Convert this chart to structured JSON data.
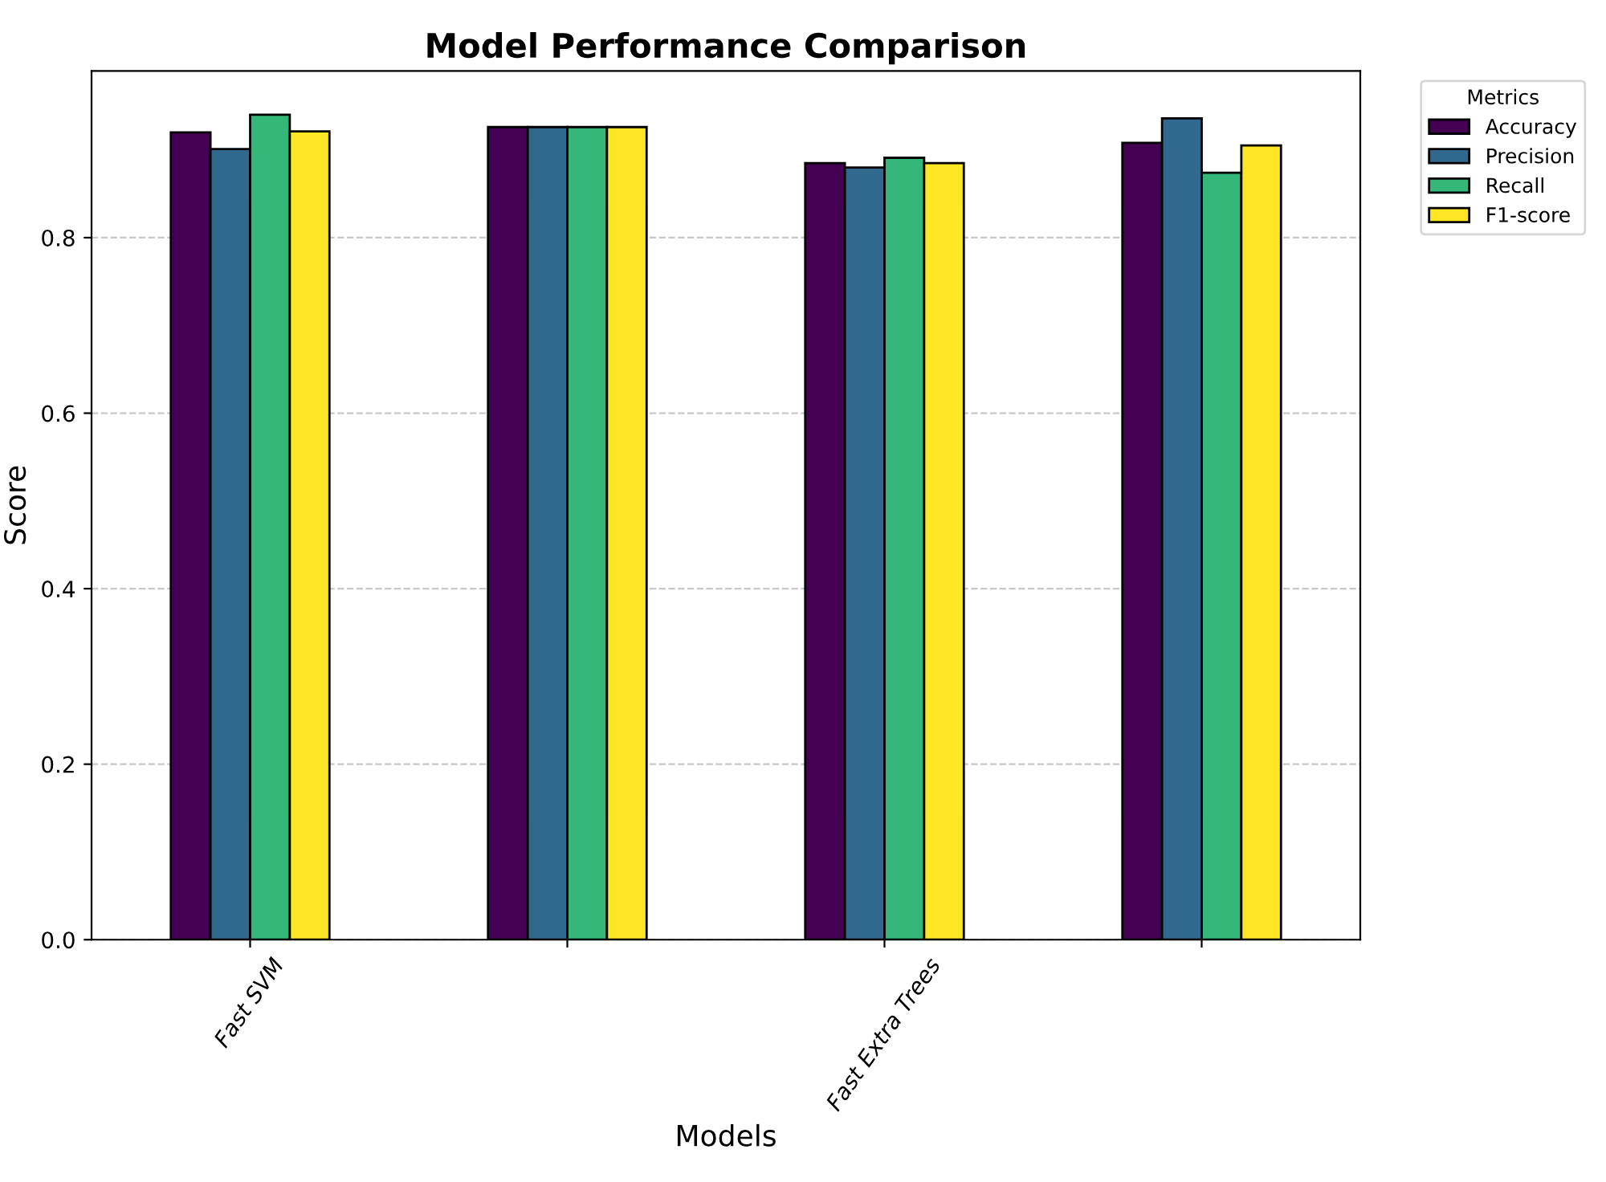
{
  "chart_data": {
    "type": "bar",
    "title": "Model Performance Comparison",
    "xlabel": "Models",
    "ylabel": "Score",
    "legend_title": "Metrics",
    "categories": [
      "Fast SVM",
      null,
      "Fast Extra Trees",
      null
    ],
    "series": [
      {
        "name": "Accuracy",
        "color": "#440154",
        "values": [
          0.92,
          0.926,
          0.885,
          0.908
        ]
      },
      {
        "name": "Precision",
        "color": "#31688e",
        "values": [
          0.901,
          0.926,
          0.88,
          0.936
        ]
      },
      {
        "name": "Recall",
        "color": "#35b779",
        "values": [
          0.94,
          0.926,
          0.891,
          0.874
        ]
      },
      {
        "name": "F1-score",
        "color": "#fde725",
        "values": [
          0.921,
          0.926,
          0.885,
          0.905
        ]
      }
    ],
    "ylim": [
      0,
      0.99
    ],
    "yticks": [
      {
        "value": 0,
        "label": "0.0"
      },
      {
        "value": 0.2,
        "label": "0.2"
      },
      {
        "value": 0.4,
        "label": "0.4"
      },
      {
        "value": 0.6,
        "label": "0.6"
      },
      {
        "value": 0.8,
        "label": "0.8"
      }
    ],
    "grid": "y",
    "legend": "top right"
  }
}
